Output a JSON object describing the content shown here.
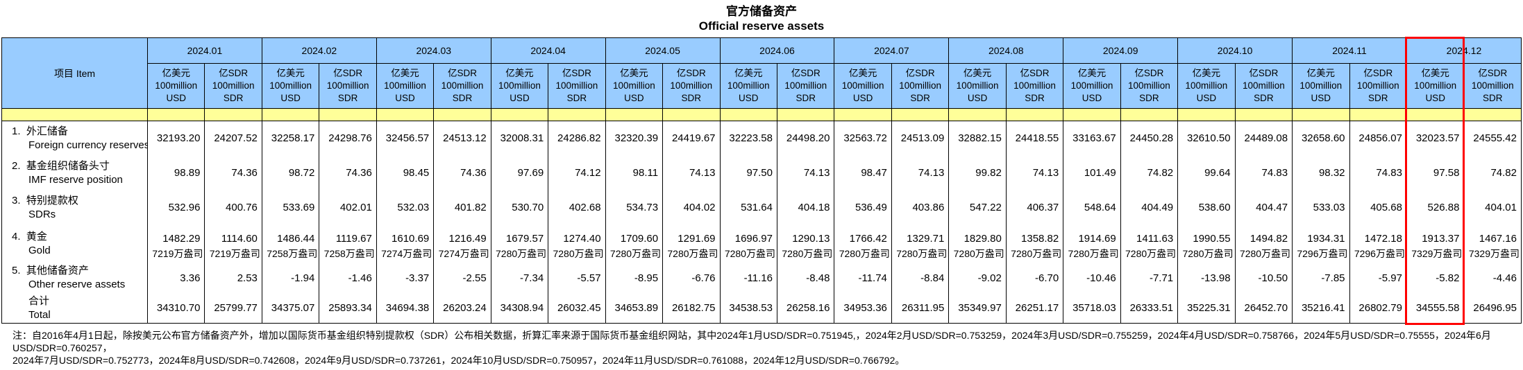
{
  "title": {
    "zh": "官方储备资产",
    "en": "Official reserve assets"
  },
  "table": {
    "item_header": "项目  Item",
    "months": [
      "2024.01",
      "2024.02",
      "2024.03",
      "2024.04",
      "2024.05",
      "2024.06",
      "2024.07",
      "2024.08",
      "2024.09",
      "2024.10",
      "2024.11",
      "2024.12"
    ],
    "unit_usd": {
      "l1": "亿美元",
      "l2": "100million",
      "l3": "USD"
    },
    "unit_sdr": {
      "l1": "亿SDR",
      "l2": "100million",
      "l3": "SDR"
    },
    "header_bg": "#99CCFF",
    "spacer_bg": "#FFFF99",
    "rows": [
      {
        "no": "1.",
        "zh": "外汇储备",
        "en": "Foreign currency reserves",
        "values": [
          "32193.20",
          "24207.52",
          "32258.17",
          "24298.76",
          "32456.57",
          "24513.12",
          "32008.31",
          "24286.82",
          "32320.39",
          "24419.67",
          "32223.58",
          "24498.20",
          "32563.72",
          "24513.09",
          "32882.15",
          "24418.55",
          "33163.67",
          "24450.28",
          "32610.50",
          "24489.08",
          "32658.60",
          "24856.07",
          "32023.57",
          "24555.42"
        ]
      },
      {
        "no": "2.",
        "zh": "基金组织储备头寸",
        "en": "IMF reserve position",
        "values": [
          "98.89",
          "74.36",
          "98.72",
          "74.36",
          "98.45",
          "74.36",
          "97.69",
          "74.12",
          "98.11",
          "74.13",
          "97.50",
          "74.13",
          "98.47",
          "74.13",
          "99.82",
          "74.13",
          "101.49",
          "74.82",
          "99.64",
          "74.83",
          "98.32",
          "74.83",
          "97.58",
          "74.82"
        ]
      },
      {
        "no": "3.",
        "zh": "特别提款权",
        "en": "SDRs",
        "values": [
          "532.96",
          "400.76",
          "533.69",
          "402.01",
          "532.03",
          "401.82",
          "530.70",
          "402.68",
          "534.73",
          "404.02",
          "531.64",
          "404.18",
          "536.49",
          "403.86",
          "547.22",
          "406.37",
          "548.64",
          "404.49",
          "538.60",
          "404.47",
          "533.03",
          "405.68",
          "526.88",
          "404.01"
        ]
      },
      {
        "no": "4.",
        "zh": "黄金",
        "en": "Gold",
        "values": [
          "1482.29",
          "1114.60",
          "1486.44",
          "1119.67",
          "1610.69",
          "1216.49",
          "1679.57",
          "1274.40",
          "1709.60",
          "1291.69",
          "1696.97",
          "1290.13",
          "1766.42",
          "1329.71",
          "1829.80",
          "1358.82",
          "1914.69",
          "1411.63",
          "1990.55",
          "1494.82",
          "1934.31",
          "1472.18",
          "1913.37",
          "1467.16"
        ],
        "ounces": [
          "7219万盎司",
          "7219万盎司",
          "7258万盎司",
          "7258万盎司",
          "7274万盎司",
          "7274万盎司",
          "7280万盎司",
          "7280万盎司",
          "7280万盎司",
          "7280万盎司",
          "7280万盎司",
          "7280万盎司",
          "7280万盎司",
          "7280万盎司",
          "7280万盎司",
          "7280万盎司",
          "7280万盎司",
          "7280万盎司",
          "7280万盎司",
          "7280万盎司",
          "7296万盎司",
          "7296万盎司",
          "7329万盎司",
          "7329万盎司"
        ]
      },
      {
        "no": "5.",
        "zh": "其他储备资产",
        "en": "Other reserve assets",
        "values": [
          "3.36",
          "2.53",
          "-1.94",
          "-1.46",
          "-3.37",
          "-2.55",
          "-7.34",
          "-5.57",
          "-8.95",
          "-6.76",
          "-11.16",
          "-8.48",
          "-11.74",
          "-8.84",
          "-9.02",
          "-6.70",
          "-10.46",
          "-7.71",
          "-13.98",
          "-10.50",
          "-7.85",
          "-5.97",
          "-5.82",
          "-4.46"
        ]
      },
      {
        "no": "",
        "zh": "合计",
        "en": "Total",
        "values": [
          "34310.70",
          "25799.77",
          "34375.07",
          "25893.34",
          "34694.38",
          "26203.24",
          "34308.94",
          "26032.45",
          "34653.89",
          "26182.75",
          "34538.53",
          "26258.16",
          "34953.36",
          "26311.95",
          "35349.97",
          "26251.17",
          "35718.03",
          "26333.51",
          "35225.31",
          "26452.70",
          "35216.41",
          "26802.79",
          "34555.58",
          "26496.95"
        ]
      }
    ],
    "highlight": {
      "month": "2024.12",
      "column": "USD",
      "col_index": 22,
      "color": "#FF0000"
    }
  },
  "footnote": {
    "line1": "注：自2016年4月1日起，除按美元公布官方储备资产外，增加以国际货币基金组织特别提款权（SDR）公布相关数据，折算汇率来源于国际货币基金组织网站，其中2024年1月USD/SDR=0.751945,，2024年2月USD/SDR=0.753259，2024年3月USD/SDR=0.755259，2024年4月USD/SDR=0.758766，2024年5月USD/SDR=0.75555，2024年6月USD/SDR=0.760257，",
    "line2": "2024年7月USD/SDR=0.752773，2024年8月USD/SDR=0.742608，2024年9月USD/SDR=0.737261，2024年10月USD/SDR=0.750957，2024年11月USD/SDR=0.761088，2024年12月USD/SDR=0.766792。"
  }
}
